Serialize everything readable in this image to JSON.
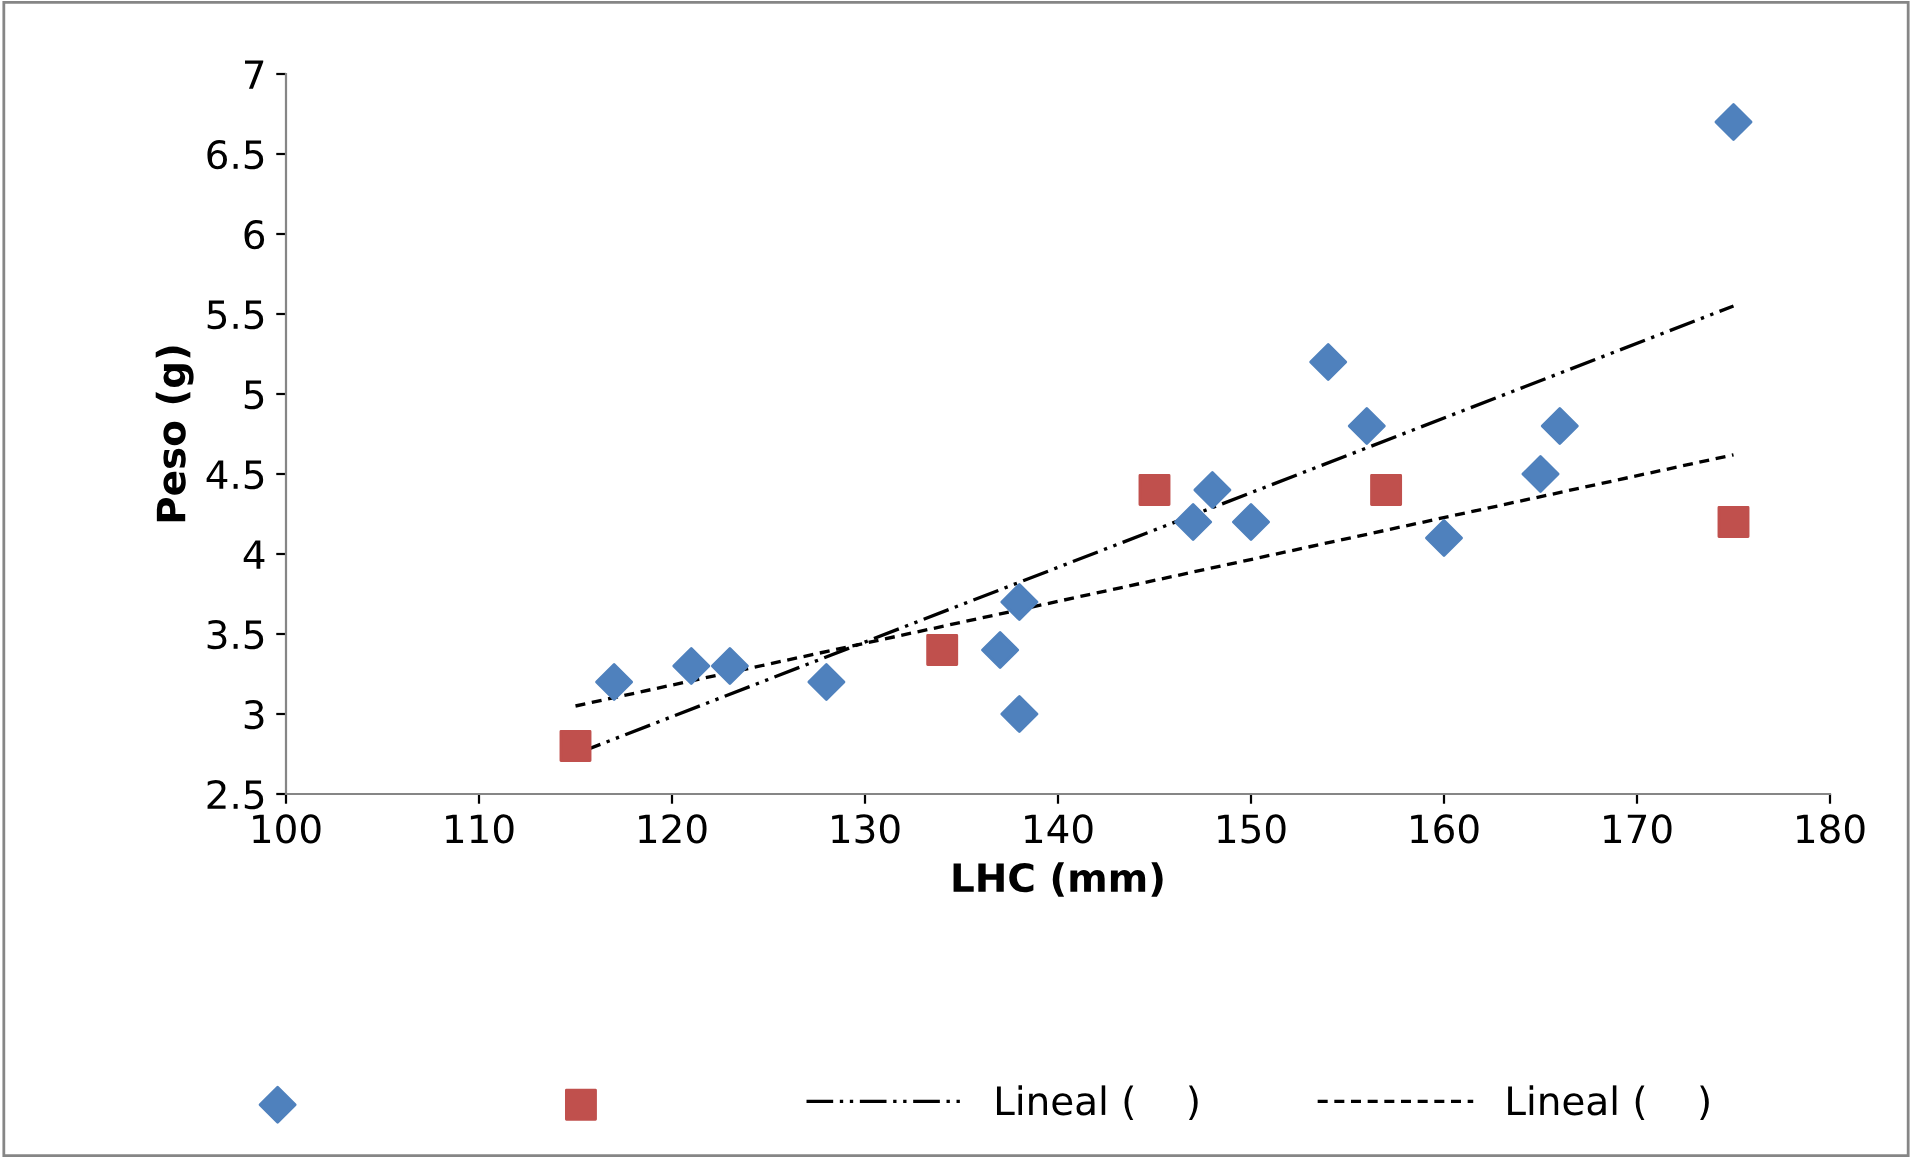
{
  "chart_data": {
    "type": "scatter",
    "xlabel": "LHC (mm)",
    "ylabel": "Peso (g)",
    "xlim": [
      100,
      180
    ],
    "xticks": [
      100,
      110,
      120,
      130,
      140,
      150,
      160,
      170,
      180
    ],
    "ylim": [
      2.5,
      7
    ],
    "yticks": [
      2.5,
      3,
      3.5,
      4,
      4.5,
      5,
      5.5,
      6,
      6.5,
      7
    ],
    "grid": false,
    "legend": "bottom",
    "series": [
      {
        "marker": "diamond",
        "color": "#4f81bd",
        "x": [
          117,
          121,
          123,
          128,
          137,
          138,
          138,
          147,
          148,
          150,
          154,
          156,
          160,
          165,
          166,
          175
        ],
        "values": [
          3.2,
          3.3,
          3.3,
          3.2,
          3.4,
          3.7,
          3.0,
          4.2,
          4.4,
          4.2,
          5.2,
          4.8,
          4.1,
          4.5,
          4.8,
          6.7
        ]
      },
      {
        "marker": "square",
        "color": "#c0504d",
        "x": [
          115,
          134,
          145,
          157,
          175
        ],
        "values": [
          2.8,
          3.4,
          4.4,
          4.4,
          4.2
        ]
      },
      {
        "type": "line",
        "name": "Lineal (    )",
        "marker": "none",
        "line_style": "dashdot",
        "color": "#000000",
        "x": [
          115,
          175
        ],
        "values": [
          2.75,
          5.55
        ]
      },
      {
        "type": "line",
        "name": "Lineal (    )",
        "marker": "none",
        "line_style": "dashed",
        "color": "#000000",
        "x": [
          115,
          175
        ],
        "values": [
          3.05,
          4.62
        ]
      }
    ]
  }
}
